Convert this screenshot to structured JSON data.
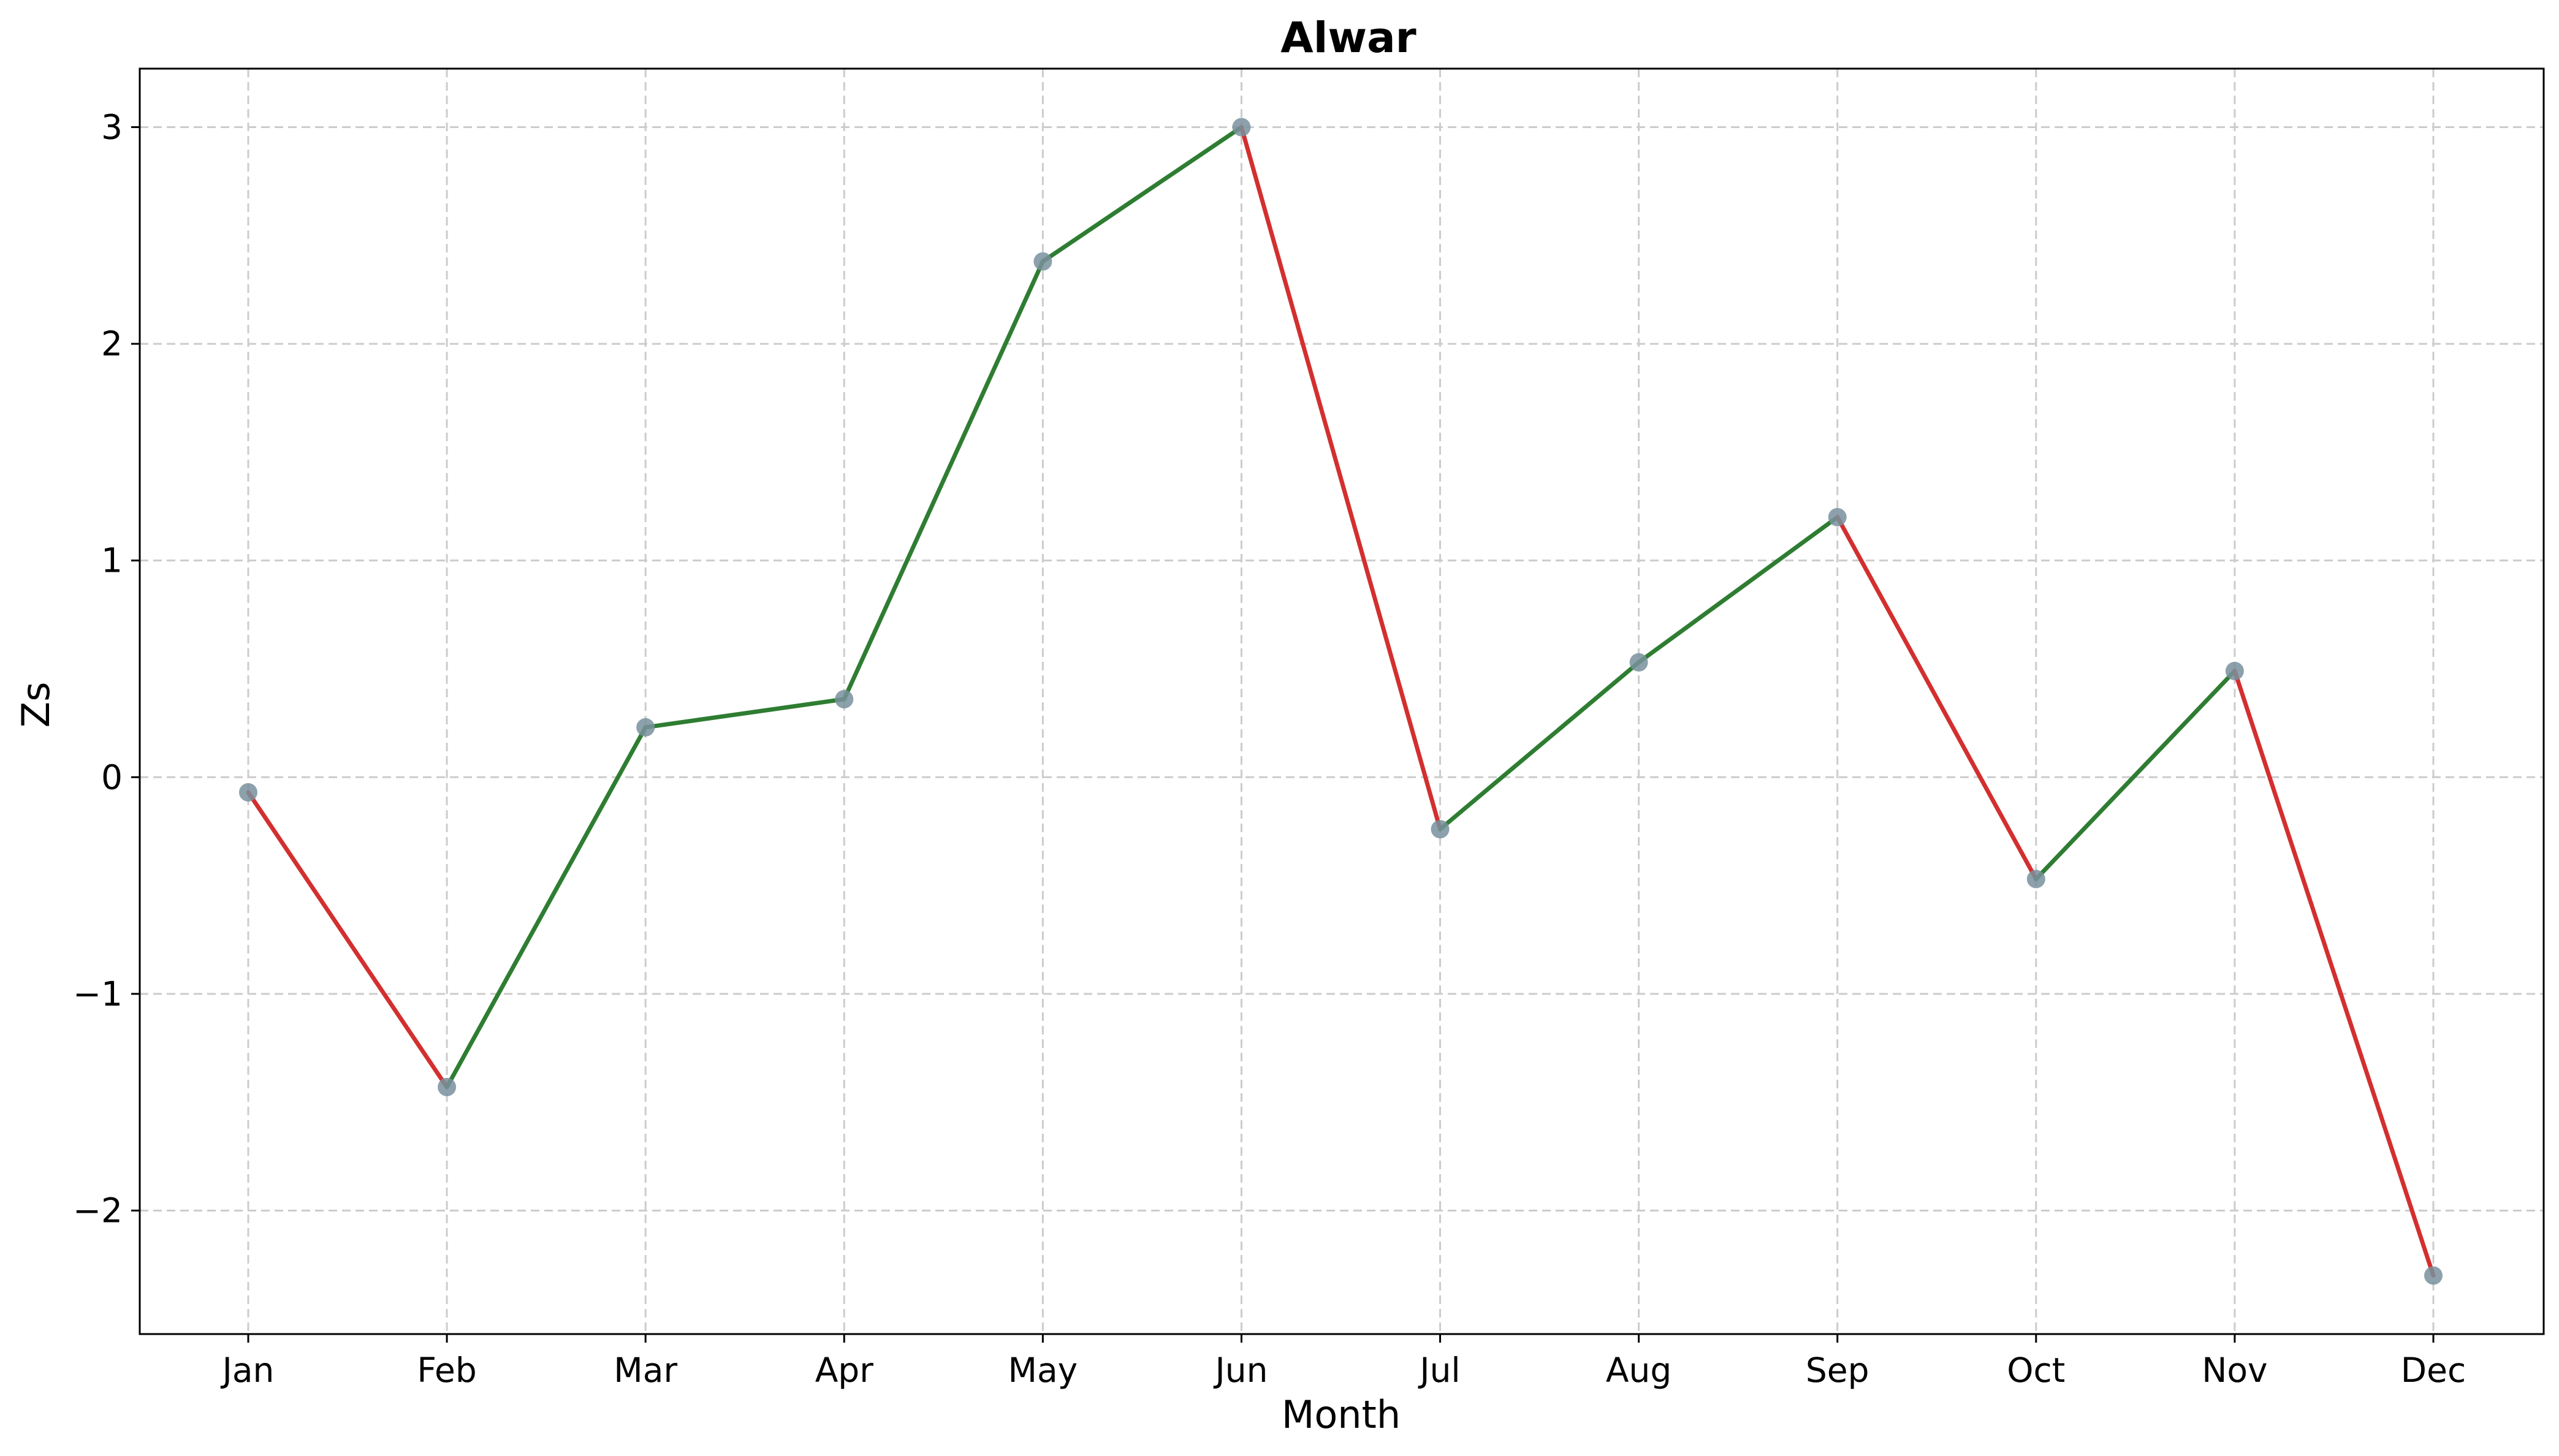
{
  "chart_data": {
    "type": "line",
    "title": "Alwar",
    "xlabel": "Month",
    "ylabel": "Zs",
    "categories": [
      "Jan",
      "Feb",
      "Mar",
      "Apr",
      "May",
      "Jun",
      "Jul",
      "Aug",
      "Sep",
      "Oct",
      "Nov",
      "Dec"
    ],
    "series": [
      {
        "values": [
          -0.07,
          -1.43,
          0.23,
          0.36,
          2.38,
          3.0,
          -0.24,
          0.53,
          1.2,
          -0.47,
          0.49,
          -2.3
        ]
      }
    ],
    "ylim": [
      -2.57,
      3.27
    ],
    "yticks": [
      -2,
      -1,
      0,
      1,
      2,
      3
    ],
    "ytick_labels": [
      "−2",
      "−1",
      "0",
      "1",
      "2",
      "3"
    ],
    "grid": true,
    "colors": {
      "increase": "#2e7d32",
      "decrease": "#d32f2f",
      "marker": "#78909c"
    }
  }
}
